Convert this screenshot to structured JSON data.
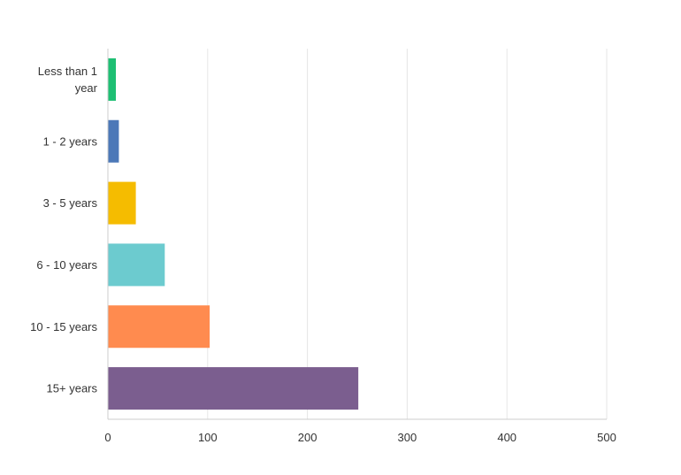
{
  "chart_data": {
    "type": "bar",
    "orientation": "horizontal",
    "categories": [
      "Less than 1 year",
      "1 - 2 years",
      "3 - 5 years",
      "6 - 10 years",
      "10 - 15 years",
      "15+ years"
    ],
    "category_lines": [
      [
        "Less than 1",
        "year"
      ],
      [
        "1 - 2 years"
      ],
      [
        "3 - 5 years"
      ],
      [
        "6 - 10 years"
      ],
      [
        "10 - 15 years"
      ],
      [
        "15+ years"
      ]
    ],
    "values": [
      8,
      11,
      28,
      57,
      102,
      251
    ],
    "colors": [
      "#1ebf73",
      "#4c78b8",
      "#f5bc00",
      "#6ccbcf",
      "#ff8b4f",
      "#7b5e8f"
    ],
    "xlim": [
      0,
      500
    ],
    "xticks": [
      0,
      100,
      200,
      300,
      400,
      500
    ],
    "grid": true,
    "title": "",
    "xlabel": "",
    "ylabel": ""
  }
}
